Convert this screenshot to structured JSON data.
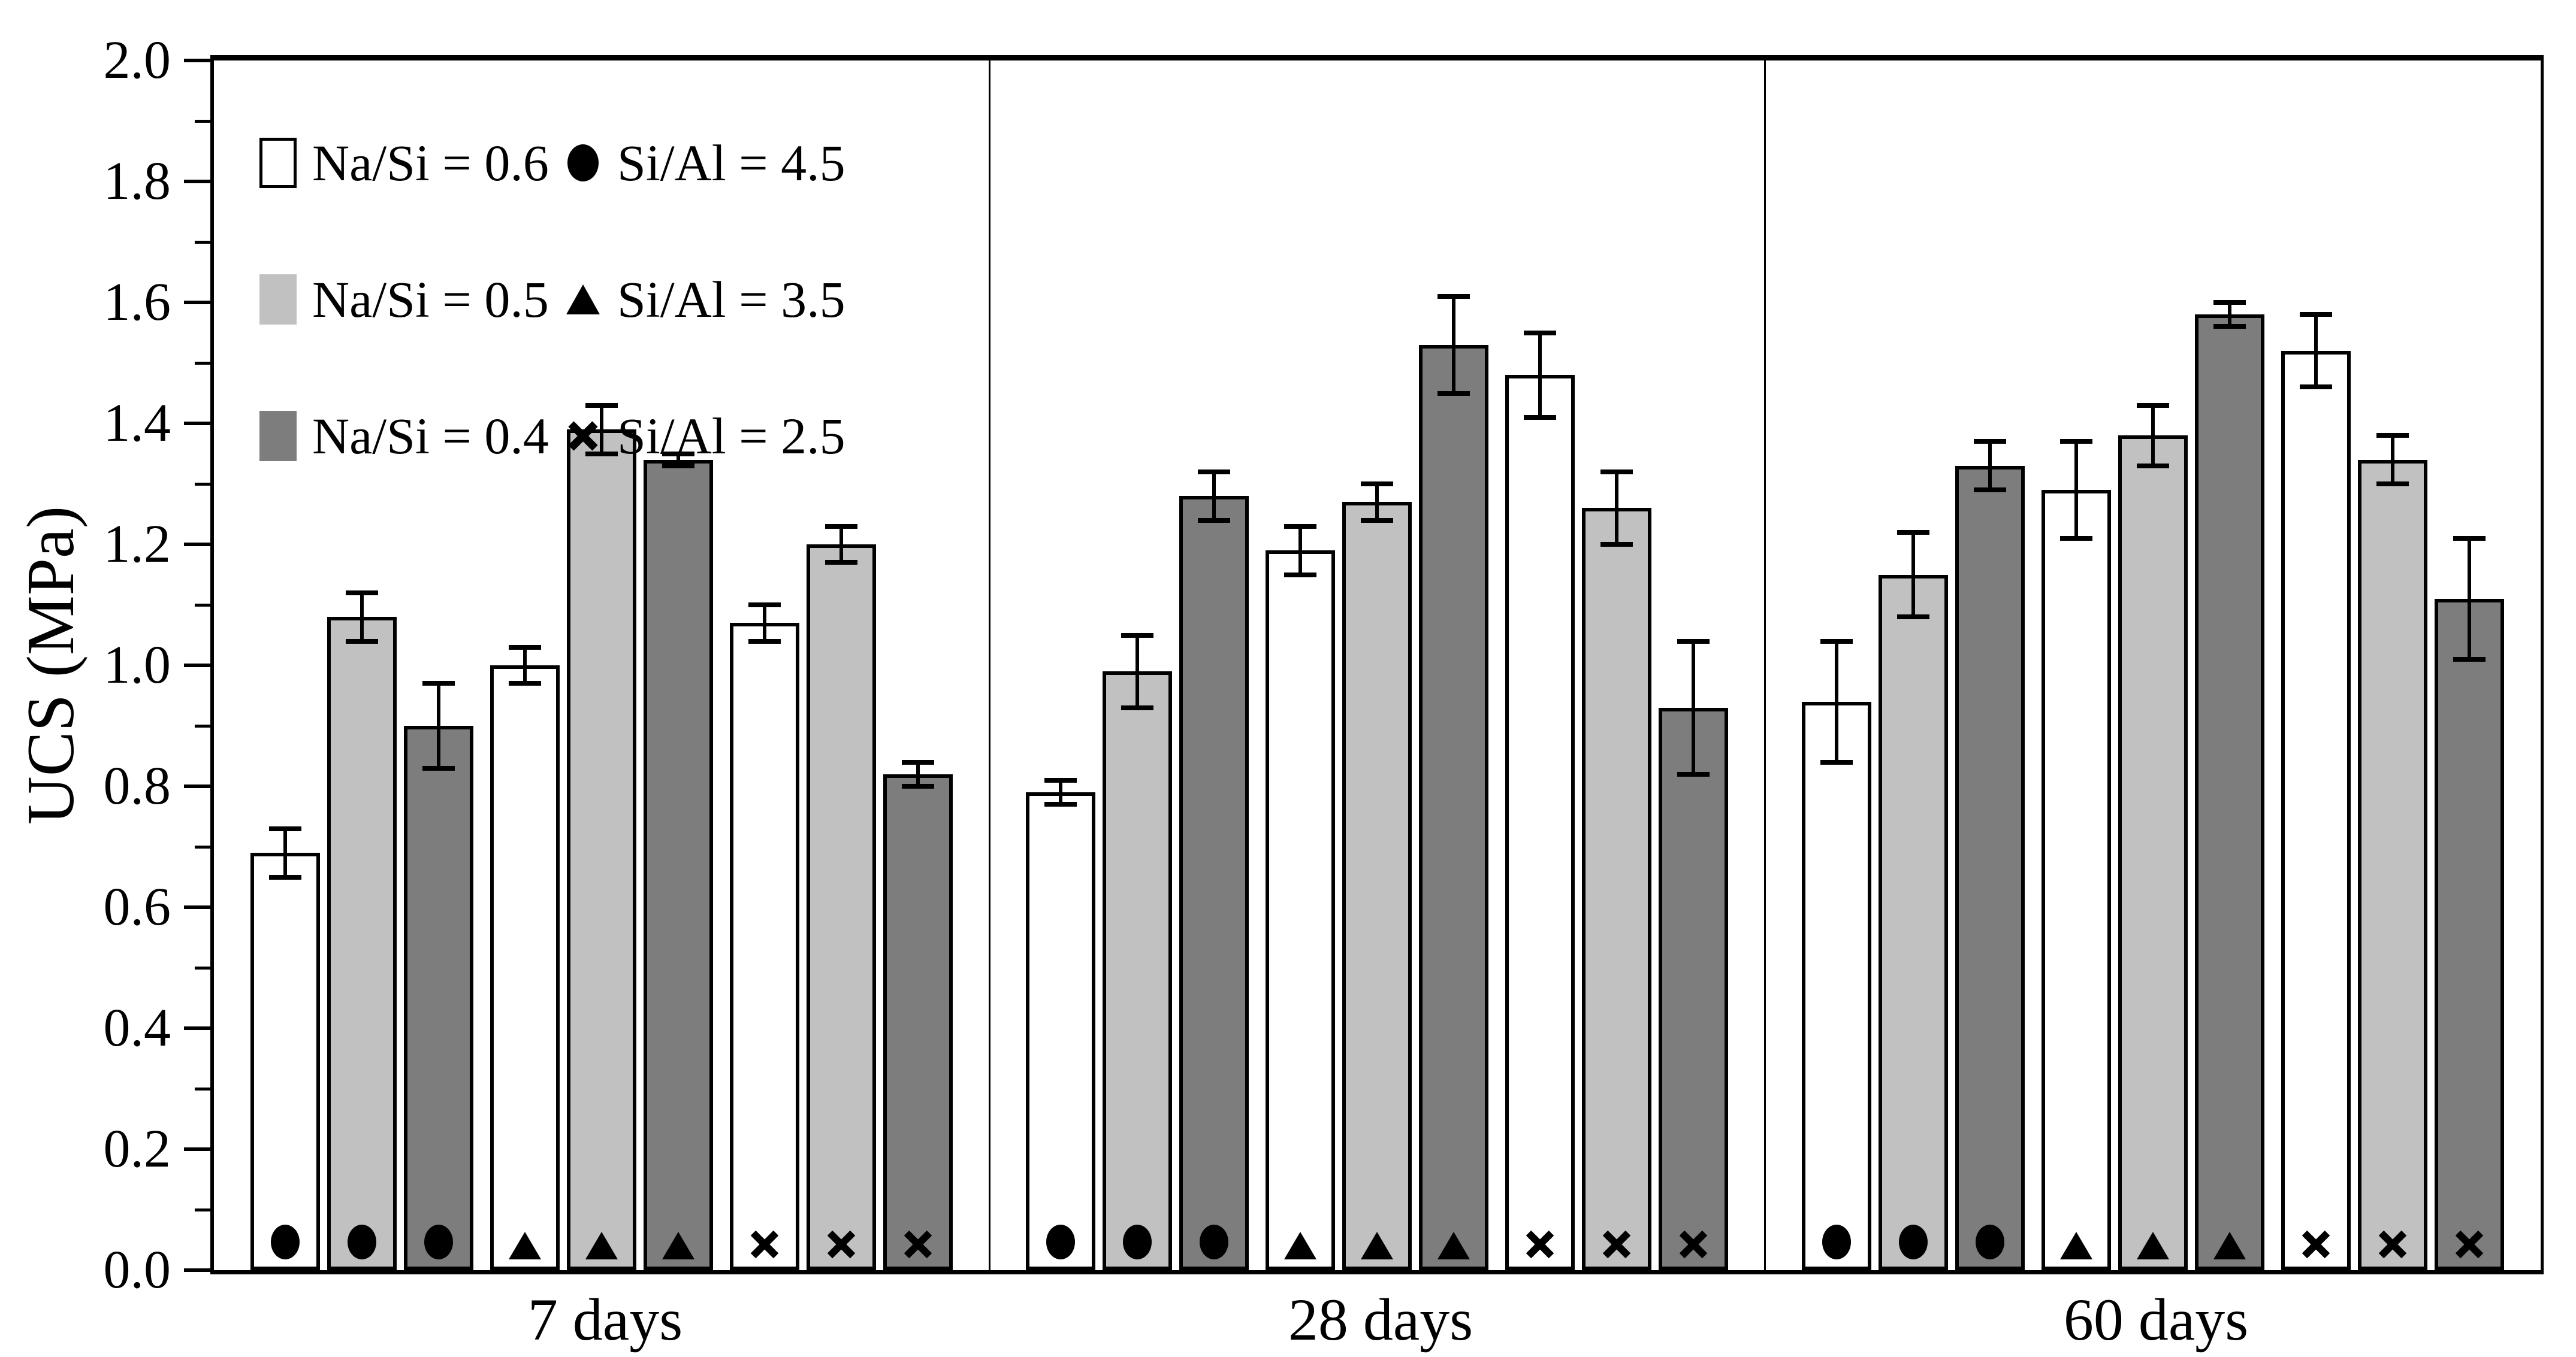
{
  "figure": {
    "y_axis": {
      "label": "UCS (MPa)",
      "min": 0.0,
      "max": 2.0,
      "major_step": 0.2,
      "minor_step": 0.1,
      "tick_labels": [
        "0.0",
        "0.2",
        "0.4",
        "0.6",
        "0.8",
        "1.0",
        "1.2",
        "1.4",
        "1.6",
        "1.8",
        "2.0"
      ]
    },
    "x_axis": {
      "group_labels": [
        "7 days",
        "28 days",
        "60 days"
      ]
    },
    "legend": {
      "fill_series": [
        {
          "label": "Na/Si = 0.6",
          "fill": "white"
        },
        {
          "label": "Na/Si = 0.5",
          "fill": "light"
        },
        {
          "label": "Na/Si = 0.4",
          "fill": "dark"
        }
      ],
      "marker_series": [
        {
          "label": "Si/Al = 4.5",
          "marker": "circle"
        },
        {
          "label": "Si/Al = 3.5",
          "marker": "triangle"
        },
        {
          "label": "Si/Al = 2.5",
          "marker": "x"
        }
      ]
    },
    "colors": {
      "white_fill": "#ffffff",
      "light_gray_fill": "#c1c1c1",
      "dark_gray_fill": "#7d7d7d",
      "edge": "#000000",
      "background": "#ffffff"
    }
  },
  "chart_data": {
    "type": "bar",
    "title": "",
    "xlabel": "",
    "ylabel": "UCS (MPa)",
    "ylim": [
      0.0,
      2.0
    ],
    "grid": false,
    "legend_position": "top-left-inside",
    "categories": [
      "7 days",
      "28 days",
      "60 days"
    ],
    "series": [
      {
        "name": "Na/Si = 0.6, Si/Al = 4.5",
        "fill": "white",
        "marker": "circle",
        "values": [
          0.69,
          0.79,
          0.94
        ],
        "errors": [
          0.04,
          0.02,
          0.1
        ]
      },
      {
        "name": "Na/Si = 0.5, Si/Al = 4.5",
        "fill": "light",
        "marker": "circle",
        "values": [
          1.08,
          0.99,
          1.15
        ],
        "errors": [
          0.04,
          0.06,
          0.07
        ]
      },
      {
        "name": "Na/Si = 0.4, Si/Al = 4.5",
        "fill": "dark",
        "marker": "circle",
        "values": [
          0.9,
          1.28,
          1.33
        ],
        "errors": [
          0.07,
          0.04,
          0.04
        ]
      },
      {
        "name": "Na/Si = 0.6, Si/Al = 3.5",
        "fill": "white",
        "marker": "triangle",
        "values": [
          1.0,
          1.19,
          1.29
        ],
        "errors": [
          0.03,
          0.04,
          0.08
        ]
      },
      {
        "name": "Na/Si = 0.5, Si/Al = 3.5",
        "fill": "light",
        "marker": "triangle",
        "values": [
          1.39,
          1.27,
          1.38
        ],
        "errors": [
          0.04,
          0.03,
          0.05
        ]
      },
      {
        "name": "Na/Si = 0.4, Si/Al = 3.5",
        "fill": "dark",
        "marker": "triangle",
        "values": [
          1.34,
          1.53,
          1.58
        ],
        "errors": [
          0.01,
          0.08,
          0.02
        ]
      },
      {
        "name": "Na/Si = 0.6, Si/Al = 2.5",
        "fill": "white",
        "marker": "x",
        "values": [
          1.07,
          1.48,
          1.52
        ],
        "errors": [
          0.03,
          0.07,
          0.06
        ]
      },
      {
        "name": "Na/Si = 0.5, Si/Al = 2.5",
        "fill": "light",
        "marker": "x",
        "values": [
          1.2,
          1.26,
          1.34
        ],
        "errors": [
          0.03,
          0.06,
          0.04
        ]
      },
      {
        "name": "Na/Si = 0.4, Si/Al = 2.5",
        "fill": "dark",
        "marker": "x",
        "values": [
          0.82,
          0.93,
          1.11
        ],
        "errors": [
          0.02,
          0.11,
          0.1
        ]
      }
    ]
  }
}
